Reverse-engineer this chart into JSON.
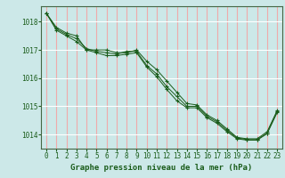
{
  "title": "Graphe pression niveau de la mer (hPa)",
  "bg_color": "#cce8e8",
  "grid_h_color": "#ffffff",
  "grid_v_color": "#f0aaaa",
  "line_color": "#1a5c1a",
  "marker_color": "#1a5c1a",
  "xlim": [
    -0.5,
    23.5
  ],
  "ylim": [
    1013.5,
    1018.55
  ],
  "xticks": [
    0,
    1,
    2,
    3,
    4,
    5,
    6,
    7,
    8,
    9,
    10,
    11,
    12,
    13,
    14,
    15,
    16,
    17,
    18,
    19,
    20,
    21,
    22,
    23
  ],
  "yticks": [
    1014,
    1015,
    1016,
    1017,
    1018
  ],
  "series1": [
    1018.3,
    1017.8,
    1017.6,
    1017.5,
    1017.0,
    1017.0,
    1017.0,
    1016.9,
    1016.9,
    1017.0,
    1016.6,
    1016.3,
    1015.9,
    1015.5,
    1015.1,
    1015.05,
    1014.7,
    1014.5,
    1014.2,
    1013.9,
    1013.85,
    1013.85,
    1014.1,
    1014.85
  ],
  "series2": [
    1018.3,
    1017.75,
    1017.55,
    1017.4,
    1017.05,
    1016.95,
    1016.9,
    1016.85,
    1016.95,
    1016.95,
    1016.45,
    1016.15,
    1015.7,
    1015.35,
    1015.0,
    1015.0,
    1014.65,
    1014.45,
    1014.15,
    1013.88,
    1013.82,
    1013.82,
    1014.05,
    1014.82
  ],
  "series3": [
    1018.3,
    1017.7,
    1017.5,
    1017.3,
    1017.0,
    1016.9,
    1016.8,
    1016.8,
    1016.85,
    1016.9,
    1016.4,
    1016.05,
    1015.6,
    1015.2,
    1014.95,
    1014.95,
    1014.6,
    1014.4,
    1014.1,
    1013.85,
    1013.8,
    1013.8,
    1014.03,
    1014.78
  ],
  "xlabel_fontsize": 6.5,
  "tick_fontsize": 5.5,
  "ytick_fontsize": 5.5
}
